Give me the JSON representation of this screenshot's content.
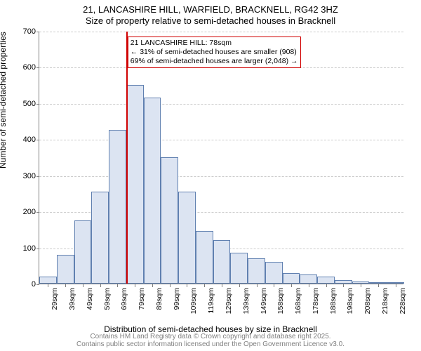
{
  "title_line1": "21, LANCASHIRE HILL, WARFIELD, BRACKNELL, RG42 3HZ",
  "title_line2": "Size of property relative to semi-detached houses in Bracknell",
  "y_axis_label": "Number of semi-detached properties",
  "x_axis_label": "Distribution of semi-detached houses by size in Bracknell",
  "footer_line1": "Contains HM Land Registry data © Crown copyright and database right 2025.",
  "footer_line2": "Contains public sector information licensed under the Open Government Licence v3.0.",
  "chart": {
    "type": "histogram",
    "ylim": [
      0,
      700
    ],
    "ytick_step": 100,
    "yticks": [
      0,
      100,
      200,
      300,
      400,
      500,
      600,
      700
    ],
    "x_categories": [
      "29sqm",
      "39sqm",
      "49sqm",
      "59sqm",
      "69sqm",
      "79sqm",
      "89sqm",
      "99sqm",
      "109sqm",
      "119sqm",
      "129sqm",
      "139sqm",
      "149sqm",
      "158sqm",
      "168sqm",
      "178sqm",
      "188sqm",
      "198sqm",
      "208sqm",
      "218sqm",
      "228sqm"
    ],
    "values": [
      20,
      80,
      175,
      255,
      425,
      550,
      515,
      350,
      255,
      145,
      120,
      85,
      70,
      60,
      30,
      25,
      20,
      10,
      5,
      0,
      0
    ],
    "bar_fill": "#dce4f2",
    "bar_border": "#6080b0",
    "grid_color": "#cccccc",
    "axis_color": "#808080",
    "background": "#ffffff",
    "marker": {
      "position_index": 5,
      "line_color": "#d00000",
      "box_border": "#d00000",
      "box_bg": "#ffffff",
      "lines": [
        "21 LANCASHIRE HILL: 78sqm",
        "← 31% of semi-detached houses are smaller (908)",
        "69% of semi-detached houses are larger (2,048) →"
      ]
    },
    "fontsize_title": 13,
    "fontsize_axis_label": 12,
    "fontsize_tick": 11,
    "fontsize_footer": 10
  }
}
